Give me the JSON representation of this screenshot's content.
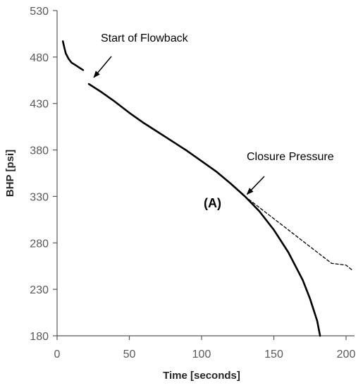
{
  "chart_data": {
    "type": "line",
    "title": "",
    "xlabel": "Time [seconds]",
    "ylabel": "BHP [psi]",
    "xlim": [
      0,
      200
    ],
    "ylim": [
      180,
      530
    ],
    "xticks": [
      0,
      50,
      100,
      150,
      200
    ],
    "yticks": [
      180,
      230,
      280,
      330,
      380,
      430,
      480,
      530
    ],
    "grid": false,
    "legend": "none",
    "line_color": "#000000",
    "series": [
      {
        "style": "solid",
        "segment": "early",
        "x": [
          4,
          5,
          6,
          8,
          10,
          13,
          16,
          18
        ],
        "y": [
          497,
          490,
          484,
          478,
          474,
          471,
          468,
          466
        ]
      },
      {
        "style": "solid",
        "segment": "main",
        "x": [
          22,
          30,
          40,
          50,
          60,
          70,
          80,
          90,
          100,
          110,
          120,
          130,
          140,
          150,
          160,
          170,
          175,
          180,
          182
        ],
        "y": [
          451,
          443,
          432,
          420,
          409,
          399,
          389,
          379,
          368,
          357,
          344,
          330,
          314,
          294,
          270,
          240,
          220,
          196,
          180
        ]
      },
      {
        "style": "dashed",
        "segment": "extrapolation",
        "x": [
          130,
          140,
          150,
          160,
          170,
          180,
          190,
          200,
          204
        ],
        "y": [
          330,
          318,
          306,
          294,
          282,
          270,
          258,
          256,
          251
        ]
      }
    ],
    "annotations": [
      {
        "text": "Start of Flowback",
        "target": [
          22,
          455
        ]
      },
      {
        "text": "Closure Pressure",
        "target": [
          130,
          330
        ]
      },
      {
        "text": "(A)",
        "target": [
          104,
          322
        ]
      }
    ]
  }
}
